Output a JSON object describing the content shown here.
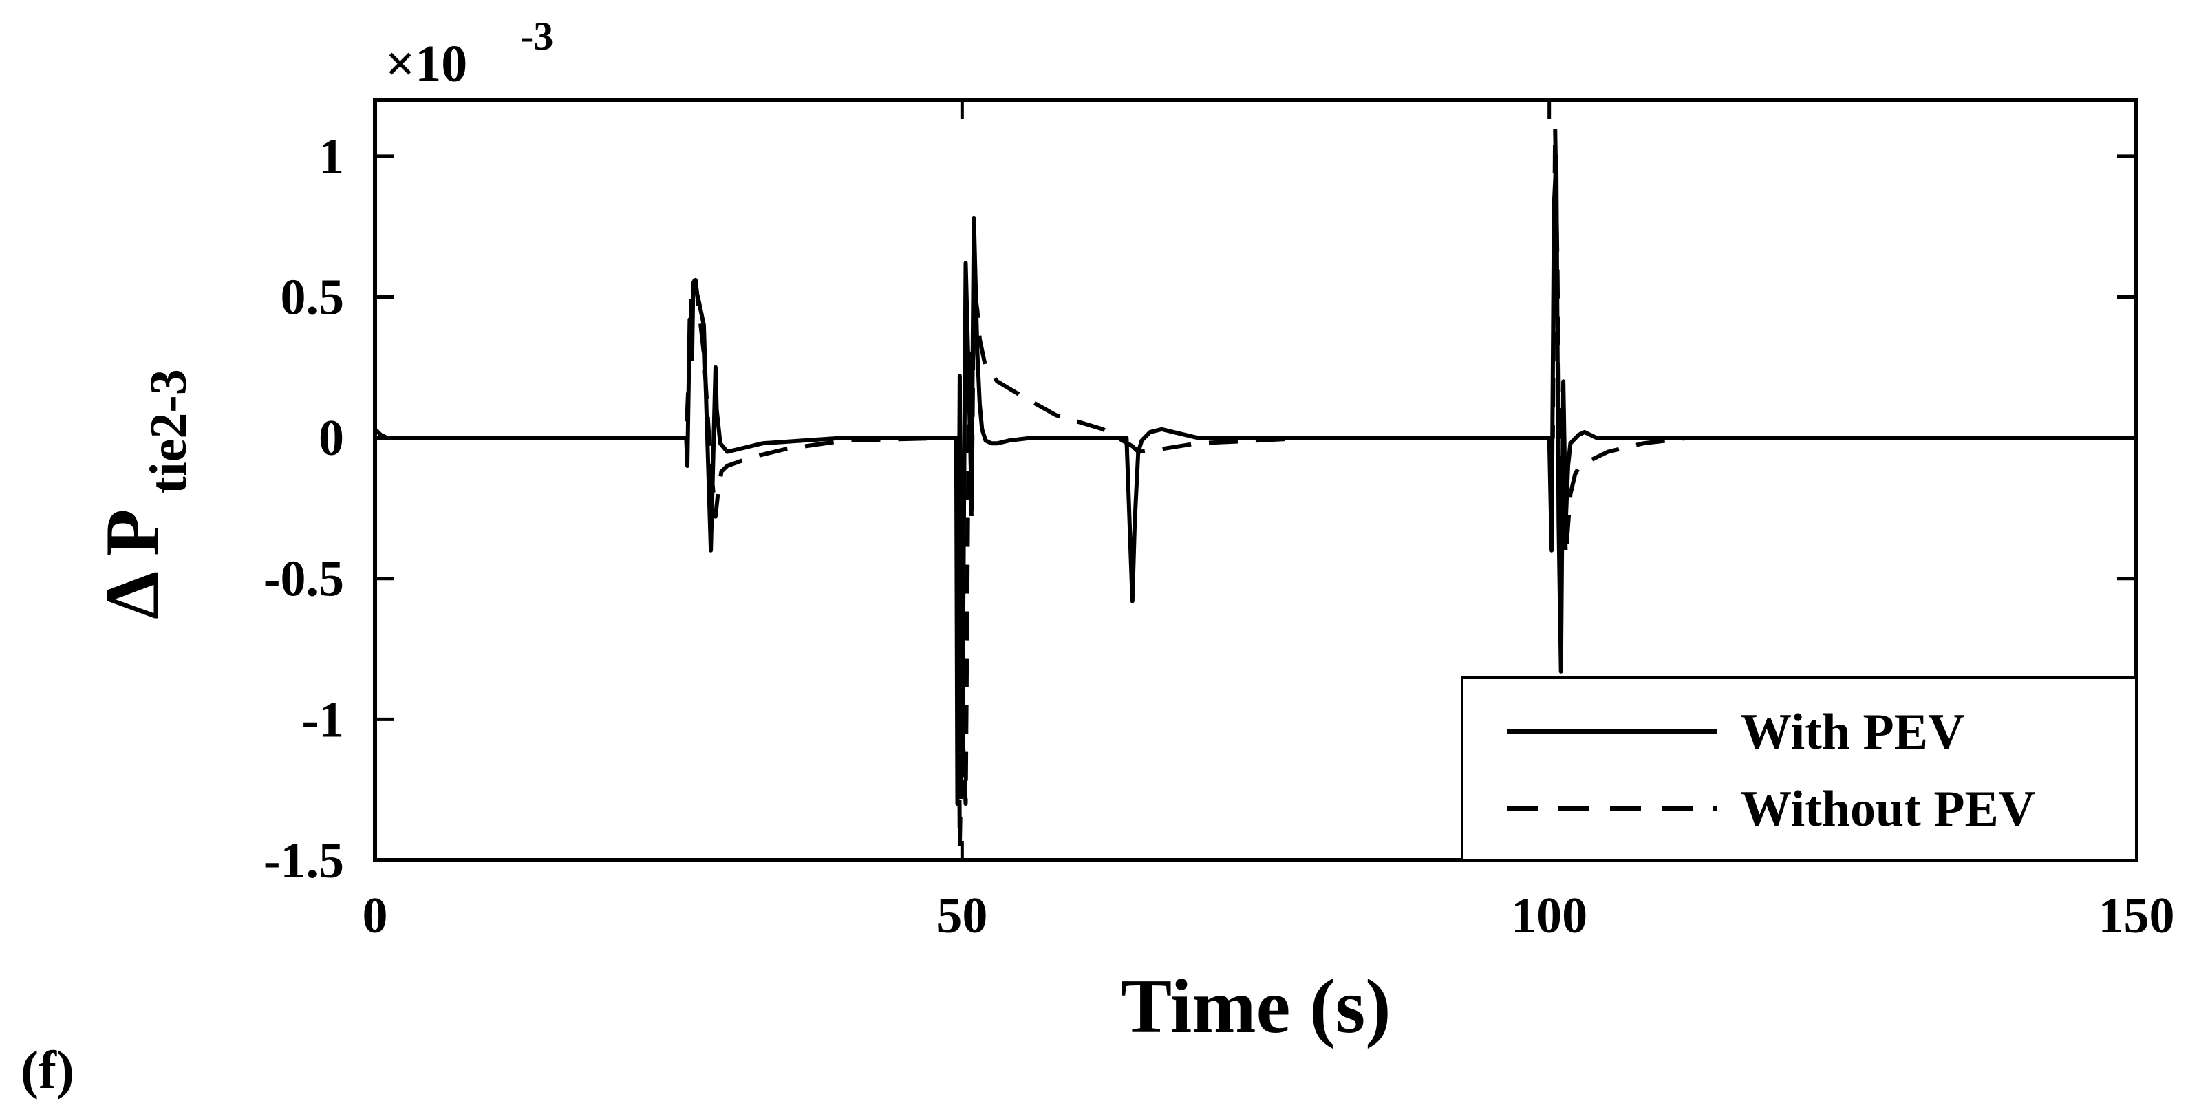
{
  "panel_tag": "(f)",
  "chart_data": {
    "type": "line",
    "title": "",
    "xlabel": "Time (s)",
    "ylabel": {
      "main": "Δ P",
      "subscript": "tie2-3"
    },
    "exponent": {
      "prefix": "×10",
      "power": "-3"
    },
    "xlim": [
      0,
      150
    ],
    "ylim": [
      -1.5,
      1.2
    ],
    "xticks": [
      0,
      50,
      100,
      150
    ],
    "xtick_labels": [
      "0",
      "50",
      "100",
      "150"
    ],
    "yticks": [
      1,
      0.5,
      0,
      -0.5,
      -1,
      -1.5
    ],
    "ytick_labels": [
      "1",
      "0.5",
      "0",
      "-0.5",
      "-1",
      "-1.5"
    ],
    "grid": false,
    "legend_position": "bottom-right",
    "legend": [
      {
        "name": "With PEV",
        "style": "solid"
      },
      {
        "name": "Without PEV",
        "style": "dashed"
      }
    ],
    "series": [
      {
        "name": "With PEV",
        "style": "solid",
        "x": [
          0,
          0.5,
          1,
          5,
          26.5,
          26.6,
          26.8,
          27,
          27.1,
          27.5,
          28.0,
          28.6,
          29.0,
          29.1,
          29.4,
          30,
          31,
          33,
          40,
          49.5,
          49.6,
          49.8,
          50.0,
          50.3,
          50.5,
          50.8,
          51.0,
          51.3,
          51.5,
          51.7,
          52.0,
          52.5,
          53,
          54,
          56,
          60,
          64.0,
          64.5,
          64.7,
          65.0,
          65.3,
          66,
          67,
          68,
          70,
          75,
          80,
          100.0,
          100.2,
          100.4,
          100.6,
          100.8,
          101.0,
          101.2,
          101.4,
          101.6,
          101.8,
          102.5,
          103,
          104,
          106,
          110,
          150
        ],
        "y": [
          0.03,
          0.01,
          0.0,
          0.0,
          0.0,
          -0.1,
          0.42,
          0.28,
          0.55,
          0.5,
          0.4,
          -0.4,
          0.25,
          0.1,
          -0.02,
          -0.05,
          -0.04,
          -0.02,
          0.0,
          0.0,
          -1.3,
          0.22,
          -1.2,
          0.62,
          0.3,
          -0.2,
          0.78,
          0.3,
          0.12,
          0.03,
          -0.01,
          -0.02,
          -0.02,
          -0.01,
          0.0,
          0.0,
          0.0,
          -0.58,
          -0.3,
          -0.05,
          -0.01,
          0.02,
          0.03,
          0.02,
          0.0,
          0.0,
          0.0,
          0.0,
          -0.4,
          0.82,
          1.0,
          -0.3,
          -0.83,
          0.2,
          -0.3,
          -0.1,
          -0.02,
          0.01,
          0.02,
          0.0,
          0.0,
          0.0,
          0.0
        ]
      },
      {
        "name": "Without PEV",
        "style": "dashed",
        "x": [
          0,
          26.5,
          26.8,
          27.0,
          27.3,
          27.6,
          28.0,
          28.3,
          28.6,
          29.0,
          29.2,
          29.5,
          30,
          32,
          35,
          40,
          49.6,
          49.8,
          50.0,
          50.3,
          50.6,
          50.8,
          51.0,
          51.3,
          51.5,
          52.0,
          53,
          55,
          58,
          62,
          64.5,
          65,
          67,
          70,
          75,
          80,
          100.3,
          100.5,
          100.7,
          100.9,
          101.1,
          101.4,
          101.8,
          102.2,
          102.6,
          103.5,
          105,
          108,
          112,
          150
        ],
        "y": [
          0.0,
          0.0,
          0.3,
          0.55,
          0.56,
          0.45,
          0.3,
          0.1,
          -0.1,
          -0.28,
          -0.2,
          -0.12,
          -0.1,
          -0.07,
          -0.04,
          -0.01,
          0.0,
          -1.45,
          -1.0,
          -1.3,
          0.3,
          -0.3,
          0.55,
          0.45,
          0.35,
          0.25,
          0.2,
          0.15,
          0.08,
          0.03,
          -0.03,
          -0.05,
          -0.04,
          -0.02,
          -0.01,
          0.0,
          0.0,
          1.1,
          0.6,
          -0.2,
          0.1,
          -0.42,
          -0.2,
          -0.13,
          -0.1,
          -0.08,
          -0.05,
          -0.02,
          0.0,
          0.0
        ]
      }
    ]
  }
}
